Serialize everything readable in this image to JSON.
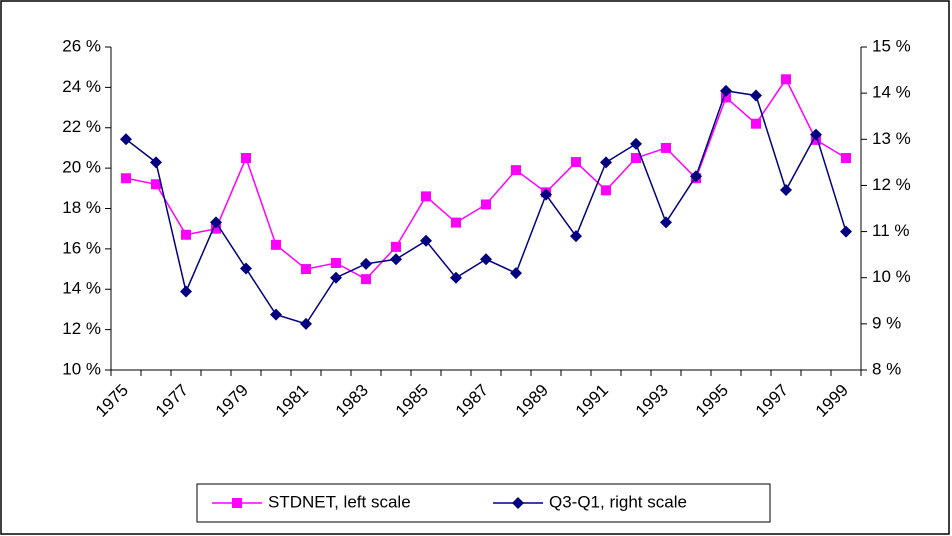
{
  "chart_data": {
    "type": "line",
    "categories": [
      "1975",
      null,
      "1977",
      null,
      "1979",
      null,
      "1981",
      null,
      "1983",
      null,
      "1985",
      null,
      "1987",
      null,
      "1989",
      null,
      "1991",
      null,
      "1993",
      null,
      "1995",
      null,
      "1997",
      null,
      "1999"
    ],
    "series": [
      {
        "name": "STDNET, left scale",
        "color": "#ff00ff",
        "marker": "square",
        "values": [
          19.5,
          19.2,
          16.7,
          17.0,
          20.5,
          16.2,
          15.0,
          15.3,
          14.5,
          16.1,
          18.6,
          17.3,
          18.2,
          19.9,
          18.8,
          20.3,
          18.9,
          20.5,
          21.0,
          19.5,
          23.5,
          22.2,
          24.4,
          21.4,
          20.5
        ]
      },
      {
        "name": "Q3-Q1, right scale",
        "color": "#000080",
        "marker": "diamond",
        "axis": "y2",
        "values": [
          13.0,
          12.5,
          9.7,
          11.2,
          10.2,
          9.2,
          9.0,
          10.0,
          10.3,
          10.4,
          10.8,
          10.0,
          10.4,
          10.1,
          11.8,
          10.9,
          12.5,
          12.9,
          11.2,
          12.2,
          14.05,
          13.95,
          11.9,
          13.1,
          11.0
        ]
      }
    ],
    "ylim": [
      10,
      26
    ],
    "yticks": [
      {
        "value": 10,
        "label": "10 %"
      },
      {
        "value": 12,
        "label": "12 %"
      },
      {
        "value": 14,
        "label": "14 %"
      },
      {
        "value": 16,
        "label": "16 %"
      },
      {
        "value": 18,
        "label": "18 %"
      },
      {
        "value": 20,
        "label": "20 %"
      },
      {
        "value": 22,
        "label": "22 %"
      },
      {
        "value": 24,
        "label": "24 %"
      },
      {
        "value": 26,
        "label": "26 %"
      }
    ],
    "y2lim": [
      8,
      15
    ],
    "y2ticks": [
      {
        "value": 8,
        "label": "8 %"
      },
      {
        "value": 9,
        "label": "9 %"
      },
      {
        "value": 10,
        "label": "10 %"
      },
      {
        "value": 11,
        "label": "11 %"
      },
      {
        "value": 12,
        "label": "12 %"
      },
      {
        "value": 13,
        "label": "13 %"
      },
      {
        "value": 14,
        "label": "14 %"
      },
      {
        "value": 15,
        "label": "15 %"
      }
    ],
    "grid": false,
    "legend": "bottom"
  }
}
